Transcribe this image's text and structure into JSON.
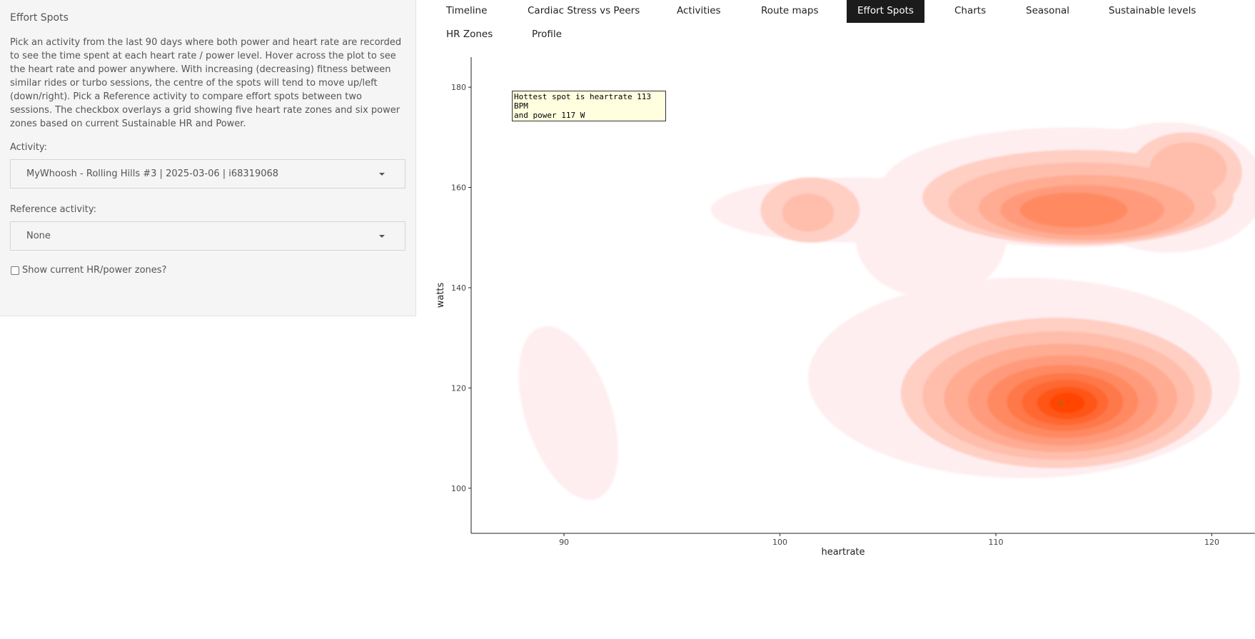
{
  "sidebar": {
    "title": "Effort Spots",
    "description": "Pick an activity from the last 90 days where both power and heart rate are recorded to see the time spent at each heart rate / power level. Hover across the plot to see the heart rate and power anywhere. With increasing (decreasing) fitness between similar rides or turbo sessions, the centre of the spots will tend to move up/left (down/right). Pick a Reference activity to compare effort spots between two sessions. The checkbox overlays a grid showing five heart rate zones and six power zones based on current Sustainable HR and Power.",
    "activity_label": "Activity:",
    "activity_value": "MyWhoosh - Rolling Hills #3 | 2025-03-06 | i68319068",
    "reference_label": "Reference activity:",
    "reference_value": "None",
    "zones_checkbox_label": "Show current HR/power zones?",
    "zones_checked": false
  },
  "nav": {
    "tabs": [
      {
        "label": "Timeline",
        "active": false
      },
      {
        "label": "Cardiac Stress vs Peers",
        "active": false
      },
      {
        "label": "Activities",
        "active": false
      },
      {
        "label": "Route maps",
        "active": false
      },
      {
        "label": "Effort Spots",
        "active": true
      },
      {
        "label": "Charts",
        "active": false
      },
      {
        "label": "Seasonal",
        "active": false
      },
      {
        "label": "Sustainable levels",
        "active": false
      },
      {
        "label": "HR Zones",
        "active": false
      },
      {
        "label": "Profile",
        "active": false
      }
    ]
  },
  "chart_data": {
    "type": "heatmap",
    "subtype": "2d-density-contour",
    "xlabel": "heartrate",
    "ylabel": "watts",
    "x_ticks": [
      90,
      100,
      110,
      120
    ],
    "y_ticks": [
      100,
      120,
      140,
      160,
      180
    ],
    "xlim": [
      85.7,
      122
    ],
    "ylim": [
      91,
      186
    ],
    "grid": false,
    "colors": {
      "low": "#ffeef0",
      "high": "#ff4400",
      "marker": "#5a8a2a"
    },
    "density_peaks": [
      {
        "heartrate": 113,
        "watts": 117,
        "relative_density": 1.0
      },
      {
        "heartrate": 113.5,
        "watts": 156,
        "relative_density": 0.45
      },
      {
        "heartrate": 119,
        "watts": 164,
        "relative_density": 0.3
      },
      {
        "heartrate": 101.3,
        "watts": 155,
        "relative_density": 0.25
      },
      {
        "heartrate": 91,
        "watts": 115,
        "relative_density": 0.08
      }
    ],
    "hottest_spot": {
      "heartrate": 113,
      "watts": 117
    },
    "tooltip_lines": [
      "Hottest spot is heartrate 113 BPM",
      "and power 117 W"
    ]
  }
}
